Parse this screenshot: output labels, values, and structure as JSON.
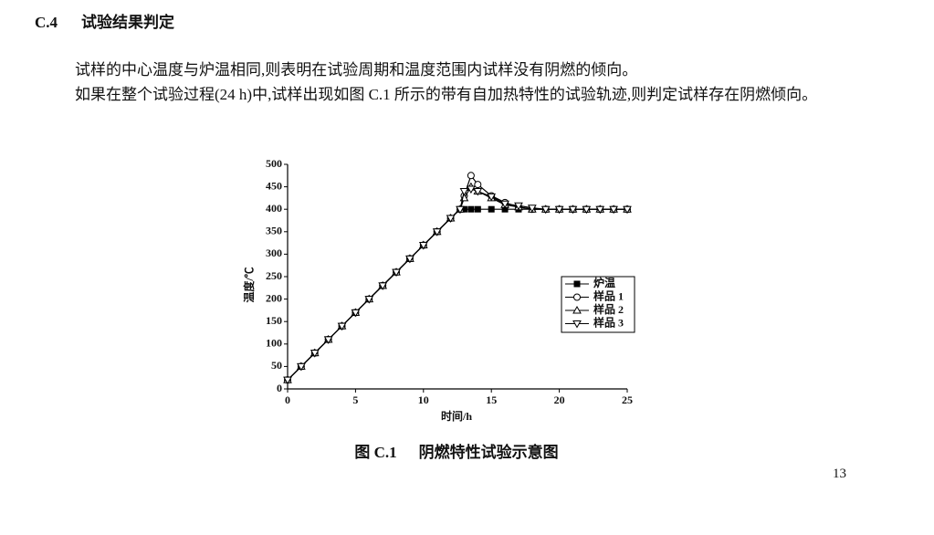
{
  "section": {
    "number": "C.4",
    "title": "试验结果判定"
  },
  "paragraphs": [
    "试样的中心温度与炉温相同,则表明在试验周期和温度范围内试样没有阴燃的倾向。",
    "如果在整个试验过程(24 h)中,试样出现如图 C.1 所示的带有自加热特性的试验轨迹,则判定试样存在阴燃倾向。"
  ],
  "chart_data": {
    "type": "line",
    "xlabel": "时间/h",
    "ylabel": "温度/℃",
    "x": [
      0,
      1,
      2,
      3,
      4,
      5,
      6,
      7,
      8,
      9,
      10,
      11,
      12,
      12.7,
      13,
      13.5,
      14,
      15,
      16,
      17,
      18,
      19,
      20,
      21,
      22,
      23,
      24,
      25
    ],
    "series": [
      {
        "name": "炉温",
        "color": "#000000",
        "marker": "square",
        "values": [
          20,
          50,
          80,
          110,
          140,
          170,
          200,
          230,
          260,
          290,
          320,
          350,
          380,
          400,
          400,
          400,
          400,
          400,
          400,
          400,
          400,
          400,
          400,
          400,
          400,
          400,
          400,
          400
        ]
      },
      {
        "name": "样品 1",
        "color": "#000000",
        "marker": "circle",
        "values": [
          20,
          50,
          80,
          110,
          140,
          170,
          200,
          230,
          260,
          290,
          320,
          350,
          380,
          400,
          430,
          475,
          455,
          430,
          415,
          405,
          400,
          400,
          400,
          400,
          400,
          400,
          400,
          400
        ]
      },
      {
        "name": "样品 2",
        "color": "#000000",
        "marker": "triangle-up",
        "values": [
          20,
          50,
          80,
          110,
          140,
          170,
          200,
          230,
          260,
          290,
          320,
          350,
          380,
          400,
          425,
          450,
          440,
          425,
          410,
          405,
          400,
          400,
          400,
          400,
          400,
          400,
          400,
          400
        ]
      },
      {
        "name": "样品 3",
        "color": "#000000",
        "marker": "triangle-down",
        "values": [
          20,
          50,
          80,
          110,
          140,
          170,
          200,
          230,
          260,
          290,
          320,
          350,
          380,
          400,
          440,
          445,
          440,
          428,
          412,
          408,
          403,
          400,
          400,
          400,
          400,
          400,
          400,
          400
        ]
      }
    ],
    "xlim": [
      0,
      25
    ],
    "xticks": [
      0,
      5,
      10,
      15,
      20,
      25
    ],
    "ylim": [
      0,
      500
    ],
    "yticks": [
      0,
      50,
      100,
      150,
      200,
      250,
      300,
      350,
      400,
      450,
      500
    ],
    "grid": false,
    "legend": "right"
  },
  "figure_caption": {
    "label": "图 C.1",
    "title": "阴燃特性试验示意图"
  },
  "page_number": "13"
}
